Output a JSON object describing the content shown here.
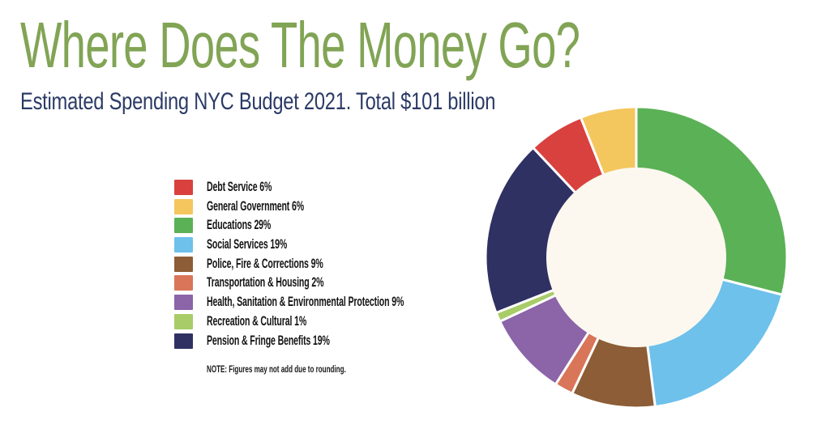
{
  "header": {
    "title": "Where Does The Money Go?",
    "subtitle": "Estimated Spending NYC Budget 2021. Total $101 billion"
  },
  "note": "NOTE: Figures may not add due to rounding.",
  "colors": {
    "title_text": "#81A455",
    "subtitle_text": "#2B3A66",
    "legend_text": "#141414",
    "background": "#FFFFFF",
    "donut_hole": "#FCF8F0",
    "slice_gap": "#FFFFFF"
  },
  "chart_data": {
    "type": "pie",
    "donut": true,
    "title": "Where Does The Money Go?",
    "subtitle": "Estimated Spending NYC Budget 2021. Total $101 billion",
    "total": "Total $101 billion",
    "units": "percent",
    "legend_position": "left",
    "start_angle_deg": 0,
    "direction": "clockwise",
    "outer_radius": 186,
    "inner_radius": 110,
    "items": [
      {
        "name": "Debt Service",
        "label": "Debt Service 6%",
        "value": 6,
        "color": "#D8413E"
      },
      {
        "name": "General Government",
        "label": "General Government 6%",
        "value": 6,
        "color": "#F4C65E"
      },
      {
        "name": "Educations",
        "label": "Educations 29%",
        "value": 29,
        "color": "#5BB156"
      },
      {
        "name": "Social Services",
        "label": "Social Services 19%",
        "value": 19,
        "color": "#6DC1EB"
      },
      {
        "name": "Police, Fire & Corrections",
        "label": "Police, Fire & Corrections 9%",
        "value": 9,
        "color": "#8C5D36"
      },
      {
        "name": "Transportation & Housing",
        "label": "Transportation & Housing 2%",
        "value": 2,
        "color": "#D97558"
      },
      {
        "name": "Health, Sanitation & Environmental Protection",
        "label": "Health, Sanitation & Environmental Protection 9%",
        "value": 9,
        "color": "#8C64A8"
      },
      {
        "name": "Recreation & Cultural",
        "label": "Recreation & Cultural 1%",
        "value": 1,
        "color": "#A8CC68"
      },
      {
        "name": "Pension & Fringe Benefits",
        "label": "Pension & Fringe Benefits 19%",
        "value": 19,
        "color": "#2F3163"
      }
    ],
    "pie_order_clockwise_from_top": [
      "Educations",
      "Social Services",
      "Police, Fire & Corrections",
      "Transportation & Housing",
      "Health, Sanitation & Environmental Protection",
      "Recreation & Cultural",
      "Pension & Fringe Benefits",
      "Debt Service",
      "General Government"
    ]
  }
}
